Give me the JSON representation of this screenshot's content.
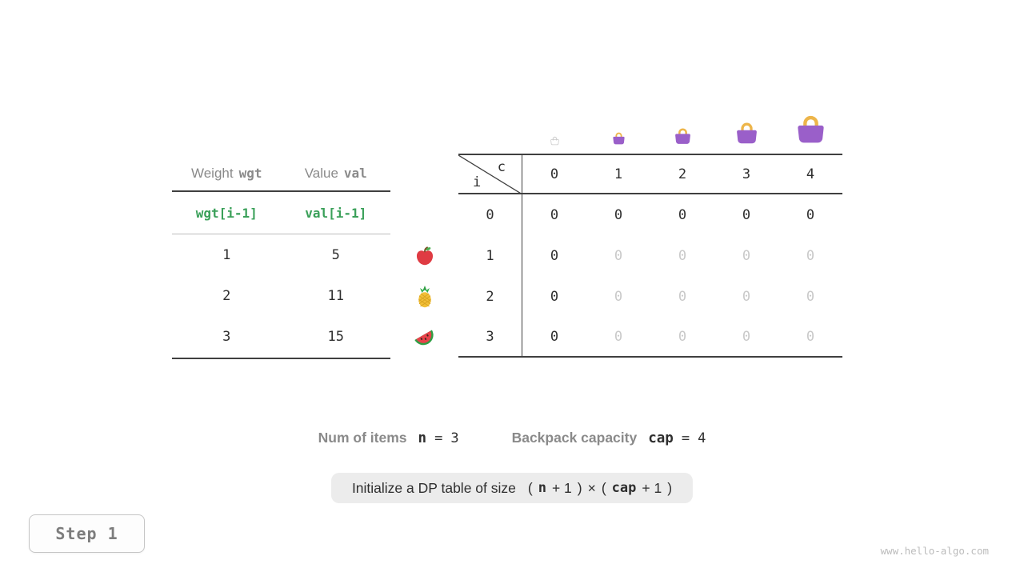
{
  "colors": {
    "text_dark": "#2f2f2f",
    "text_gray": "#8a8a8a",
    "code_green": "#3aa059",
    "ghost_gray": "#c9c9c9",
    "line_dark": "#3f3f3f",
    "line_light": "#bdbdbd",
    "bag_purple": "#9A5FC9",
    "bag_handle": "#EDB54A",
    "pill_bg": "#ececec"
  },
  "item_table": {
    "col1_label": "Weight",
    "col1_code": "wgt",
    "col2_label": "Value",
    "col2_code": "val",
    "code_row": {
      "col1": "wgt[i-1]",
      "col2": "val[i-1]"
    },
    "rows": [
      {
        "weight": "1",
        "value": "5",
        "fruit": "apple-icon"
      },
      {
        "weight": "2",
        "value": "11",
        "fruit": "pineapple-icon"
      },
      {
        "weight": "3",
        "value": "15",
        "fruit": "watermelon-icon"
      }
    ]
  },
  "dp_table": {
    "corner_row_var": "i",
    "corner_col_var": "c",
    "col_headers": [
      "0",
      "1",
      "2",
      "3",
      "4"
    ],
    "rows": [
      {
        "label": "0",
        "cells": [
          {
            "text": "0",
            "ghost": false
          },
          {
            "text": "0",
            "ghost": false
          },
          {
            "text": "0",
            "ghost": false
          },
          {
            "text": "0",
            "ghost": false
          },
          {
            "text": "0",
            "ghost": false
          }
        ]
      },
      {
        "label": "1",
        "cells": [
          {
            "text": "0",
            "ghost": false
          },
          {
            "text": "0",
            "ghost": true
          },
          {
            "text": "0",
            "ghost": true
          },
          {
            "text": "0",
            "ghost": true
          },
          {
            "text": "0",
            "ghost": true
          }
        ]
      },
      {
        "label": "2",
        "cells": [
          {
            "text": "0",
            "ghost": false
          },
          {
            "text": "0",
            "ghost": true
          },
          {
            "text": "0",
            "ghost": true
          },
          {
            "text": "0",
            "ghost": true
          },
          {
            "text": "0",
            "ghost": true
          }
        ]
      },
      {
        "label": "3",
        "cells": [
          {
            "text": "0",
            "ghost": false
          },
          {
            "text": "0",
            "ghost": true
          },
          {
            "text": "0",
            "ghost": true
          },
          {
            "text": "0",
            "ghost": true
          },
          {
            "text": "0",
            "ghost": true
          }
        ]
      }
    ],
    "bags": [
      {
        "size": 13,
        "ghost": true
      },
      {
        "size": 19,
        "ghost": false
      },
      {
        "size": 25,
        "ghost": false
      },
      {
        "size": 33,
        "ghost": false
      },
      {
        "size": 43,
        "ghost": false
      }
    ]
  },
  "stats": {
    "items_label": "Num of items",
    "items_var": "n",
    "items_eq": "=",
    "items_value": "3",
    "capacity_label": "Backpack capacity",
    "capacity_var": "cap",
    "capacity_eq": "=",
    "capacity_value": "4"
  },
  "caption": {
    "prefix": "Initialize a DP table of size",
    "t1": "(",
    "var1": "n",
    "t2": "+ 1",
    "t3": ")",
    "times": "×",
    "t4": "(",
    "var2": "cap",
    "t5": "+ 1",
    "t6": ")"
  },
  "step_label": "Step 1",
  "watermark": "www.hello-algo.com"
}
